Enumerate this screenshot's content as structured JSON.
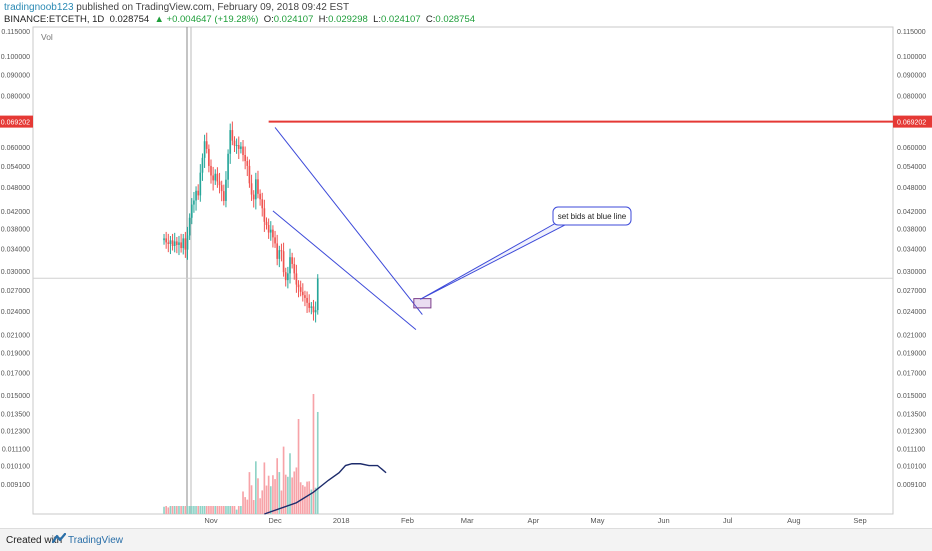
{
  "header": {
    "author": "tradingnoob123",
    "published": "published on TradingView.com, February 09, 2018 09:42 EST"
  },
  "ohlc": {
    "symbol": "BINANCE:ETCETH, 1D",
    "last": "0.028754",
    "change": "▲ +0.004647 (+19.28%)",
    "o_label": "O:",
    "o": "0.024107",
    "h_label": "H:",
    "h": "0.029298",
    "l_label": "L:",
    "l": "0.024107",
    "c_label": "C:",
    "c": "0.028754"
  },
  "footer": {
    "created": "Created with",
    "brand": "TradingView"
  },
  "colors": {
    "up": "#26a69a",
    "down": "#ef5350",
    "resistance": "#e53935",
    "channel": "#3d4ad9",
    "volume_ma": "#1c2b6b"
  },
  "chart_data": {
    "type": "candlestick",
    "symbol": "BINANCE:ETCETH",
    "interval": "1D",
    "y_scale": "log",
    "ylim": [
      0.0077,
      0.1175
    ],
    "price_ticks": [
      "0.115000",
      "0.100000",
      "0.090000",
      "0.080000",
      "0.069202",
      "0.060000",
      "0.054000",
      "0.048000",
      "0.042000",
      "0.038000",
      "0.034000",
      "0.030000",
      "0.027000",
      "0.024000",
      "0.021000",
      "0.019000",
      "0.017000",
      "0.015000",
      "0.013500",
      "0.012300",
      "0.011100",
      "0.010100",
      "0.009100"
    ],
    "x_ticks": [
      "Nov",
      "Dec",
      "2018",
      "Feb",
      "Mar",
      "Apr",
      "May",
      "Jun",
      "Jul",
      "Aug",
      "Sep"
    ],
    "volume_label": "Vol",
    "resistance_level": "0.069202",
    "annotation": "set bids at blue line",
    "channel_upper": [
      [
        "2017-12-01",
        0.067
      ],
      [
        "2018-02-08",
        0.0235
      ]
    ],
    "channel_lower": [
      [
        "2017-11-30",
        0.042
      ],
      [
        "2018-02-05",
        0.0216
      ]
    ],
    "box_range": [
      0.0244,
      0.0257
    ],
    "closes": [
      0.036,
      0.0352,
      0.0349,
      0.0356,
      0.0345,
      0.0354,
      0.0347,
      0.0352,
      0.0341,
      0.036,
      0.0338,
      0.0366,
      0.0404,
      0.0435,
      0.0445,
      0.047,
      0.0458,
      0.052,
      0.0565,
      0.062,
      0.0594,
      0.054,
      0.0512,
      0.0498,
      0.0517,
      0.0495,
      0.0485,
      0.0469,
      0.0444,
      0.05,
      0.0578,
      0.066,
      0.0622,
      0.0605,
      0.0607,
      0.0594,
      0.0602,
      0.0574,
      0.0555,
      0.054,
      0.049,
      0.046,
      0.0448,
      0.0501,
      0.0462,
      0.0448,
      0.0426,
      0.0395,
      0.0388,
      0.0372,
      0.0378,
      0.0362,
      0.035,
      0.0321,
      0.0337,
      0.0335,
      0.0298,
      0.0285,
      0.0296,
      0.0324,
      0.0312,
      0.0296,
      0.0278,
      0.0274,
      0.0267,
      0.0262,
      0.0258,
      0.0251,
      0.0244,
      0.0246,
      0.0238,
      0.0241,
      0.02875
    ],
    "volume_ma": [
      [
        25,
        0.0077
      ],
      [
        40,
        0.0082
      ],
      [
        48,
        0.0087
      ],
      [
        55,
        0.0093
      ],
      [
        60,
        0.0097
      ],
      [
        63,
        0.0101
      ],
      [
        66,
        0.0102
      ],
      [
        70,
        0.0102
      ],
      [
        74,
        0.0101
      ],
      [
        78,
        0.0101
      ],
      [
        80,
        0.0099
      ],
      [
        82,
        0.0097
      ]
    ]
  }
}
